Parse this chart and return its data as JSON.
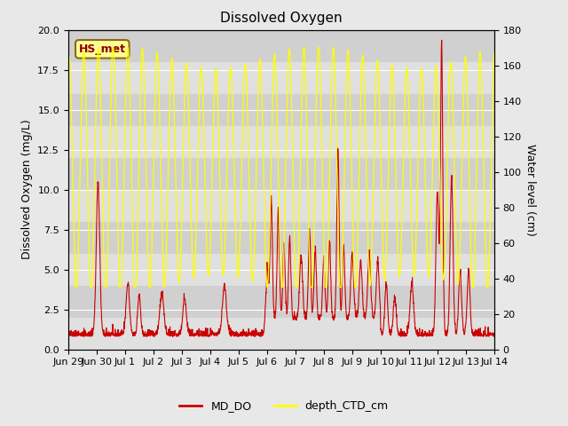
{
  "title": "Dissolved Oxygen",
  "ylabel_left": "Dissolved Oxygen (mg/L)",
  "ylabel_right": "Water level (cm)",
  "ylim_left": [
    0,
    20
  ],
  "ylim_right": [
    0,
    180
  ],
  "background_color": "#e8e8e8",
  "plot_bg_color": "#d4d4d4",
  "hs_met_label": "HS_met",
  "hs_met_facecolor": "#ffff99",
  "hs_met_edgecolor": "#8b6914",
  "hs_met_textcolor": "#8b0000",
  "legend_labels": [
    "MD_DO",
    "depth_CTD_cm"
  ],
  "legend_colors": [
    "#cc0000",
    "#ffff00"
  ],
  "x_tick_labels": [
    "Jun 29",
    "Jun 30",
    "Jul 1",
    "Jul 2",
    "Jul 3",
    "Jul 4",
    "Jul 5",
    "Jul 6",
    "Jul 7",
    "Jul 8",
    "Jul 9",
    "Jul 10",
    "Jul 11",
    "Jul 12",
    "Jul 13",
    "Jul 14"
  ],
  "grid_color": "#ffffff",
  "title_fontsize": 11,
  "label_fontsize": 9,
  "tick_fontsize": 8
}
